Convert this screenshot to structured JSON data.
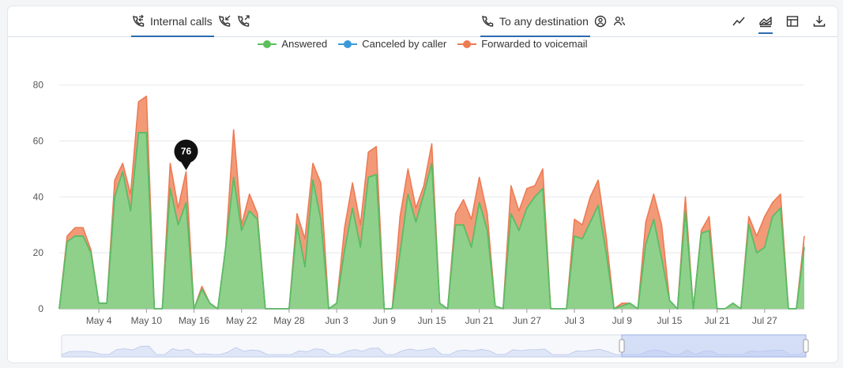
{
  "tabs": {
    "internal_calls": "Internal calls",
    "to_any_destination": "To any destination"
  },
  "toolbar": {
    "icons": [
      "line-chart-icon",
      "stacked-area-icon",
      "table-icon",
      "download-icon"
    ],
    "active": "stacked-area-icon"
  },
  "legend": [
    {
      "name": "Answered",
      "color": "#5cbf5c"
    },
    {
      "name": "Canceled by caller",
      "color": "#3a9ad9"
    },
    {
      "name": "Forwarded to voicemail",
      "color": "#ee7b54"
    }
  ],
  "tooltip": {
    "value": "76",
    "x_index": 16
  },
  "chart_data": {
    "type": "area",
    "stacked": true,
    "ylim": [
      0,
      85
    ],
    "yticks": [
      "0",
      "20",
      "40",
      "60",
      "80"
    ],
    "xtick_labels": [
      "May 4",
      "May 10",
      "May 16",
      "May 22",
      "May 28",
      "Jun 3",
      "Jun 9",
      "Jun 15",
      "Jun 21",
      "Jun 27",
      "Jul 3",
      "Jul 9",
      "Jul 15",
      "Jul 21",
      "Jul 27"
    ],
    "grid": true,
    "legend_position": "top",
    "series": [
      {
        "name": "Answered",
        "values": [
          0,
          24,
          26,
          26,
          20,
          2,
          2,
          40,
          49,
          35,
          63,
          63,
          0,
          0,
          43,
          30,
          38,
          0,
          7,
          2,
          0,
          22,
          47,
          28,
          35,
          32,
          0,
          0,
          0,
          0,
          30,
          15,
          46,
          32,
          0,
          2,
          21,
          36,
          22,
          47,
          48,
          0,
          0,
          20,
          41,
          31,
          41,
          52,
          2,
          0,
          30,
          30,
          22,
          38,
          28,
          1,
          0,
          34,
          28,
          36,
          40,
          43,
          0,
          0,
          0,
          26,
          25,
          31,
          37,
          20,
          0,
          1,
          2,
          0,
          23,
          32,
          18,
          3,
          0,
          35,
          0,
          27,
          28,
          0,
          0,
          2,
          0,
          30,
          20,
          22,
          33,
          36,
          0,
          0,
          22
        ]
      },
      {
        "name": "Canceled by caller",
        "values": [
          0,
          0,
          0,
          0,
          0,
          0,
          0,
          0,
          0,
          0,
          0,
          0,
          0,
          0,
          0,
          0,
          0,
          0,
          0,
          0,
          0,
          0,
          0,
          0,
          0,
          0,
          0,
          0,
          0,
          0,
          0,
          0,
          0,
          0,
          0,
          0,
          0,
          0,
          0,
          0,
          0,
          0,
          0,
          0,
          0,
          0,
          0,
          0,
          0,
          0,
          0,
          0,
          0,
          0,
          0,
          0,
          0,
          0,
          0,
          0,
          0,
          0,
          0,
          0,
          0,
          0,
          0,
          0,
          0,
          0,
          0,
          0,
          0,
          0,
          0,
          0,
          0,
          0,
          0,
          0,
          0,
          0,
          0,
          0,
          0,
          0,
          0,
          0,
          0,
          0,
          0,
          0,
          0,
          0,
          0
        ]
      },
      {
        "name": "Forwarded to voicemail",
        "values": [
          0,
          2,
          3,
          3,
          1,
          0,
          0,
          6,
          3,
          6,
          11,
          13,
          0,
          0,
          9,
          6,
          11,
          0,
          1,
          0,
          0,
          0,
          17,
          2,
          6,
          2,
          0,
          0,
          0,
          0,
          4,
          10,
          6,
          13,
          0,
          0,
          8,
          9,
          8,
          9,
          10,
          0,
          0,
          13,
          9,
          5,
          3,
          7,
          0,
          0,
          4,
          9,
          10,
          9,
          6,
          0,
          0,
          10,
          7,
          7,
          4,
          7,
          0,
          0,
          0,
          6,
          5,
          9,
          9,
          6,
          0,
          1,
          0,
          0,
          8,
          9,
          12,
          0,
          0,
          5,
          0,
          1,
          5,
          0,
          0,
          0,
          0,
          3,
          6,
          11,
          5,
          5,
          0,
          0,
          4
        ]
      }
    ]
  }
}
